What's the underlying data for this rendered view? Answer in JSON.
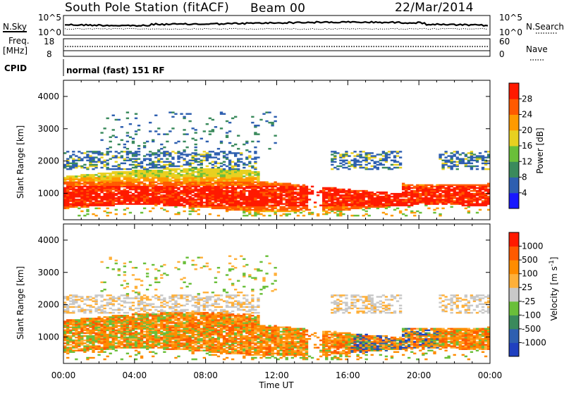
{
  "header": {
    "station": "South Pole Station (fitACF)",
    "beam": "Beam 00",
    "date": "22/Mar/2014"
  },
  "top_panels": {
    "nsky_label": "N.Sky",
    "nsky_ticks": [
      "10^5",
      "10^0"
    ],
    "nsearch_label": "N.Search",
    "nsearch_ticks": [
      "10^5",
      "10^0"
    ],
    "freq_label_1": "Freq.",
    "freq_label_2": "[MHz]",
    "freq_ticks": [
      "18",
      "8"
    ],
    "nave_label": "Nave",
    "nave_ticks": [
      "60",
      "0"
    ],
    "cpid_label": "CPID",
    "cpid_value": "normal (fast) 151 RF"
  },
  "colors": {
    "power_scale": [
      "#1818ff",
      "#2e5fb0",
      "#3a8a5c",
      "#6abf3a",
      "#e8d020",
      "#ff9a00",
      "#ff5a00",
      "#ff1a00"
    ],
    "velocity_scale": [
      "#ff1a00",
      "#ff5a00",
      "#ff8c00",
      "#ffb03a",
      "#c8c8c8",
      "#6abf3a",
      "#3a8a5c",
      "#2e5fb0",
      "#2040c0"
    ]
  },
  "chart_data": [
    {
      "type": "heatmap",
      "name": "power",
      "title": "",
      "xlabel": "Time UT",
      "ylabel": "Slant Range [km]",
      "x_ticks": [
        "00:00",
        "04:00",
        "08:00",
        "12:00",
        "16:00",
        "20:00",
        "00:00"
      ],
      "x_range_hours": [
        0,
        24
      ],
      "y_ticks": [
        1000,
        2000,
        3000,
        4000
      ],
      "ylim": [
        180,
        4500
      ],
      "colorbar": {
        "label": "Power [dB]",
        "ticks": [
          4,
          8,
          12,
          16,
          20,
          24,
          28
        ],
        "range": [
          0,
          32
        ]
      }
    },
    {
      "type": "heatmap",
      "name": "velocity",
      "title": "",
      "xlabel": "Time UT",
      "ylabel": "Slant Range [km]",
      "x_ticks": [
        "00:00",
        "04:00",
        "08:00",
        "12:00",
        "16:00",
        "20:00",
        "00:00"
      ],
      "x_range_hours": [
        0,
        24
      ],
      "y_ticks": [
        1000,
        2000,
        3000,
        4000
      ],
      "ylim": [
        180,
        4500
      ],
      "colorbar": {
        "label": "Velocity [m s^-1]",
        "ticks": [
          "1000",
          "500",
          "100",
          "25",
          "-25",
          "-100",
          "-500",
          "-1000"
        ]
      }
    }
  ]
}
